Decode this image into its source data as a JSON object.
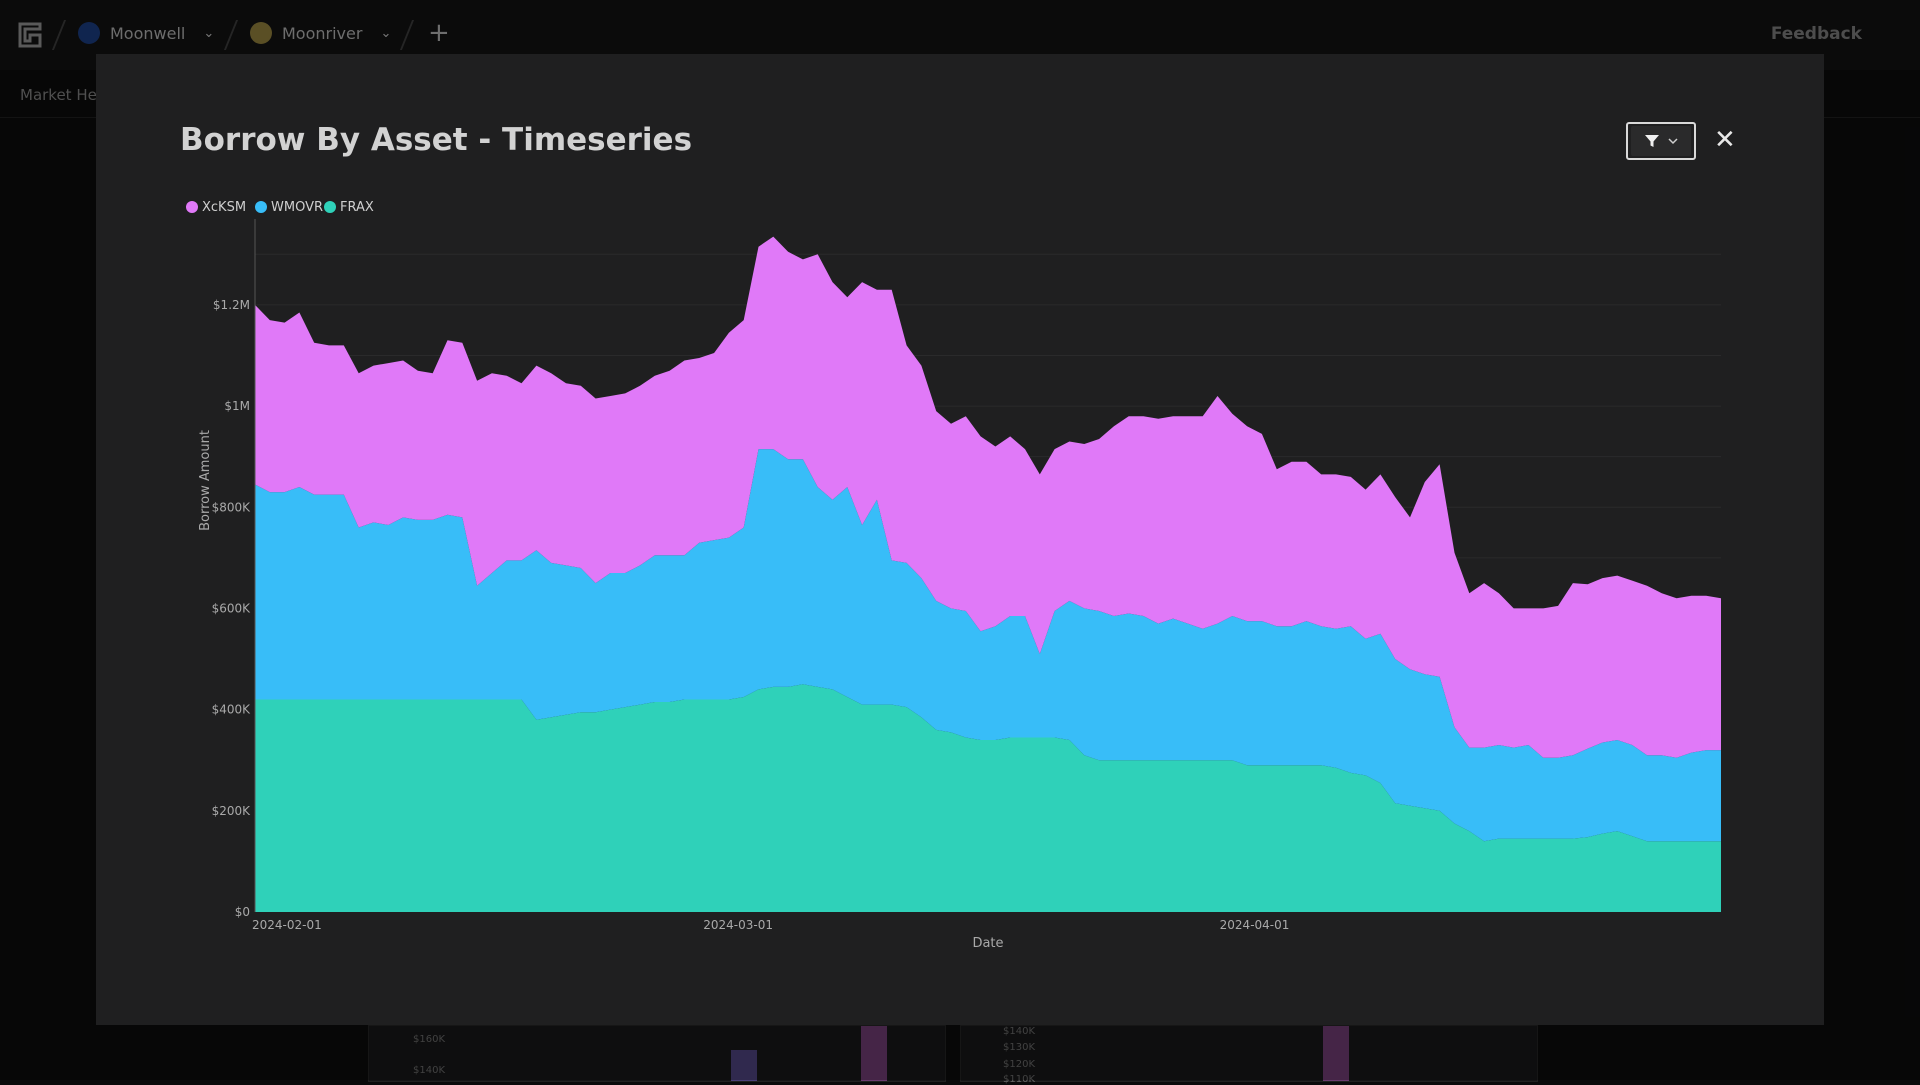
{
  "app": {
    "breadcrumbs": [
      {
        "label": "Moonwell",
        "color": "#1a3a7a"
      },
      {
        "label": "Moonriver",
        "color": "#8a7a3a"
      }
    ],
    "feedback_label": "Feedback",
    "subnav_label": "Market Hea",
    "add_icon": "plus-icon"
  },
  "background": {
    "ticks_left": [
      "$160K",
      "$140K"
    ],
    "ticks_right": [
      "$140K",
      "$130K",
      "$120K",
      "$110K"
    ]
  },
  "modal": {
    "title": "Borrow By Asset - Timeseries",
    "filter_icon": "filter-icon",
    "close_icon": "close-icon"
  },
  "chart_data": {
    "type": "area",
    "stacked": true,
    "title": "Borrow By Asset - Timeseries",
    "xlabel": "Date",
    "ylabel": "Borrow Amount",
    "ylim": [
      0,
      1350000
    ],
    "y_ticks": [
      0,
      200000,
      400000,
      600000,
      800000,
      1000000,
      1200000
    ],
    "y_tick_labels": [
      "$0",
      "$200K",
      "$400K",
      "$600K",
      "$800K",
      "$1M",
      "$1.2M"
    ],
    "x_range": [
      "2024-02-01",
      "2024-04-29"
    ],
    "x_ticks": [
      "2024-02-01",
      "2024-03-01",
      "2024-04-01"
    ],
    "legend": "top-left",
    "series": [
      {
        "name": "FRAX",
        "color": "#2fd1b9",
        "values": [
          420000,
          420000,
          420000,
          420000,
          420000,
          420000,
          420000,
          420000,
          420000,
          420000,
          420000,
          420000,
          420000,
          420000,
          420000,
          420000,
          420000,
          420000,
          420000,
          380000,
          385000,
          390000,
          395000,
          395000,
          400000,
          405000,
          410000,
          415000,
          415000,
          420000,
          420000,
          420000,
          420000,
          425000,
          440000,
          445000,
          445000,
          450000,
          445000,
          440000,
          425000,
          410000,
          410000,
          410000,
          405000,
          385000,
          360000,
          355000,
          345000,
          340000,
          340000,
          345000,
          345000,
          345000,
          345000,
          340000,
          310000,
          300000,
          300000,
          300000,
          300000,
          300000,
          300000,
          300000,
          300000,
          300000,
          300000,
          290000,
          290000,
          290000,
          290000,
          290000,
          290000,
          285000,
          275000,
          270000,
          255000,
          215000,
          210000,
          205000,
          200000,
          175000,
          160000,
          140000,
          145000,
          145000,
          145000,
          145000,
          145000,
          145000,
          148000,
          155000,
          160000,
          150000,
          140000,
          140000,
          140000,
          140000,
          140000,
          140000
        ]
      },
      {
        "name": "WMOVR",
        "color": "#38bdf8",
        "values": [
          425000,
          410000,
          410000,
          420000,
          405000,
          405000,
          405000,
          340000,
          350000,
          345000,
          360000,
          355000,
          355000,
          365000,
          360000,
          225000,
          250000,
          275000,
          275000,
          335000,
          305000,
          295000,
          285000,
          255000,
          270000,
          265000,
          275000,
          290000,
          290000,
          285000,
          310000,
          315000,
          320000,
          335000,
          475000,
          470000,
          450000,
          445000,
          395000,
          375000,
          415000,
          355000,
          405000,
          285000,
          285000,
          275000,
          255000,
          245000,
          250000,
          215000,
          225000,
          240000,
          240000,
          165000,
          250000,
          275000,
          290000,
          295000,
          285000,
          290000,
          285000,
          270000,
          280000,
          270000,
          260000,
          270000,
          285000,
          285000,
          285000,
          275000,
          275000,
          285000,
          275000,
          275000,
          290000,
          270000,
          295000,
          285000,
          270000,
          265000,
          265000,
          190000,
          165000,
          185000,
          185000,
          180000,
          185000,
          160000,
          160000,
          165000,
          175000,
          180000,
          180000,
          180000,
          170000,
          170000,
          165000,
          175000,
          180000,
          180000
        ]
      },
      {
        "name": "XcKSM",
        "color": "#e079f8",
        "values": [
          355000,
          340000,
          335000,
          345000,
          300000,
          295000,
          295000,
          305000,
          310000,
          320000,
          310000,
          295000,
          290000,
          345000,
          345000,
          405000,
          395000,
          365000,
          350000,
          365000,
          375000,
          360000,
          360000,
          365000,
          350000,
          355000,
          355000,
          355000,
          365000,
          385000,
          365000,
          370000,
          405000,
          410000,
          400000,
          420000,
          410000,
          395000,
          460000,
          430000,
          375000,
          480000,
          415000,
          535000,
          430000,
          420000,
          375000,
          365000,
          385000,
          385000,
          355000,
          355000,
          330000,
          355000,
          320000,
          315000,
          325000,
          340000,
          375000,
          390000,
          395000,
          405000,
          400000,
          410000,
          420000,
          450000,
          400000,
          385000,
          370000,
          310000,
          325000,
          315000,
          300000,
          305000,
          295000,
          295000,
          315000,
          320000,
          300000,
          380000,
          420000,
          345000,
          305000,
          325000,
          300000,
          275000,
          270000,
          295000,
          300000,
          340000,
          325000,
          325000,
          325000,
          325000,
          335000,
          320000,
          315000,
          310000,
          305000,
          300000
        ]
      }
    ]
  }
}
